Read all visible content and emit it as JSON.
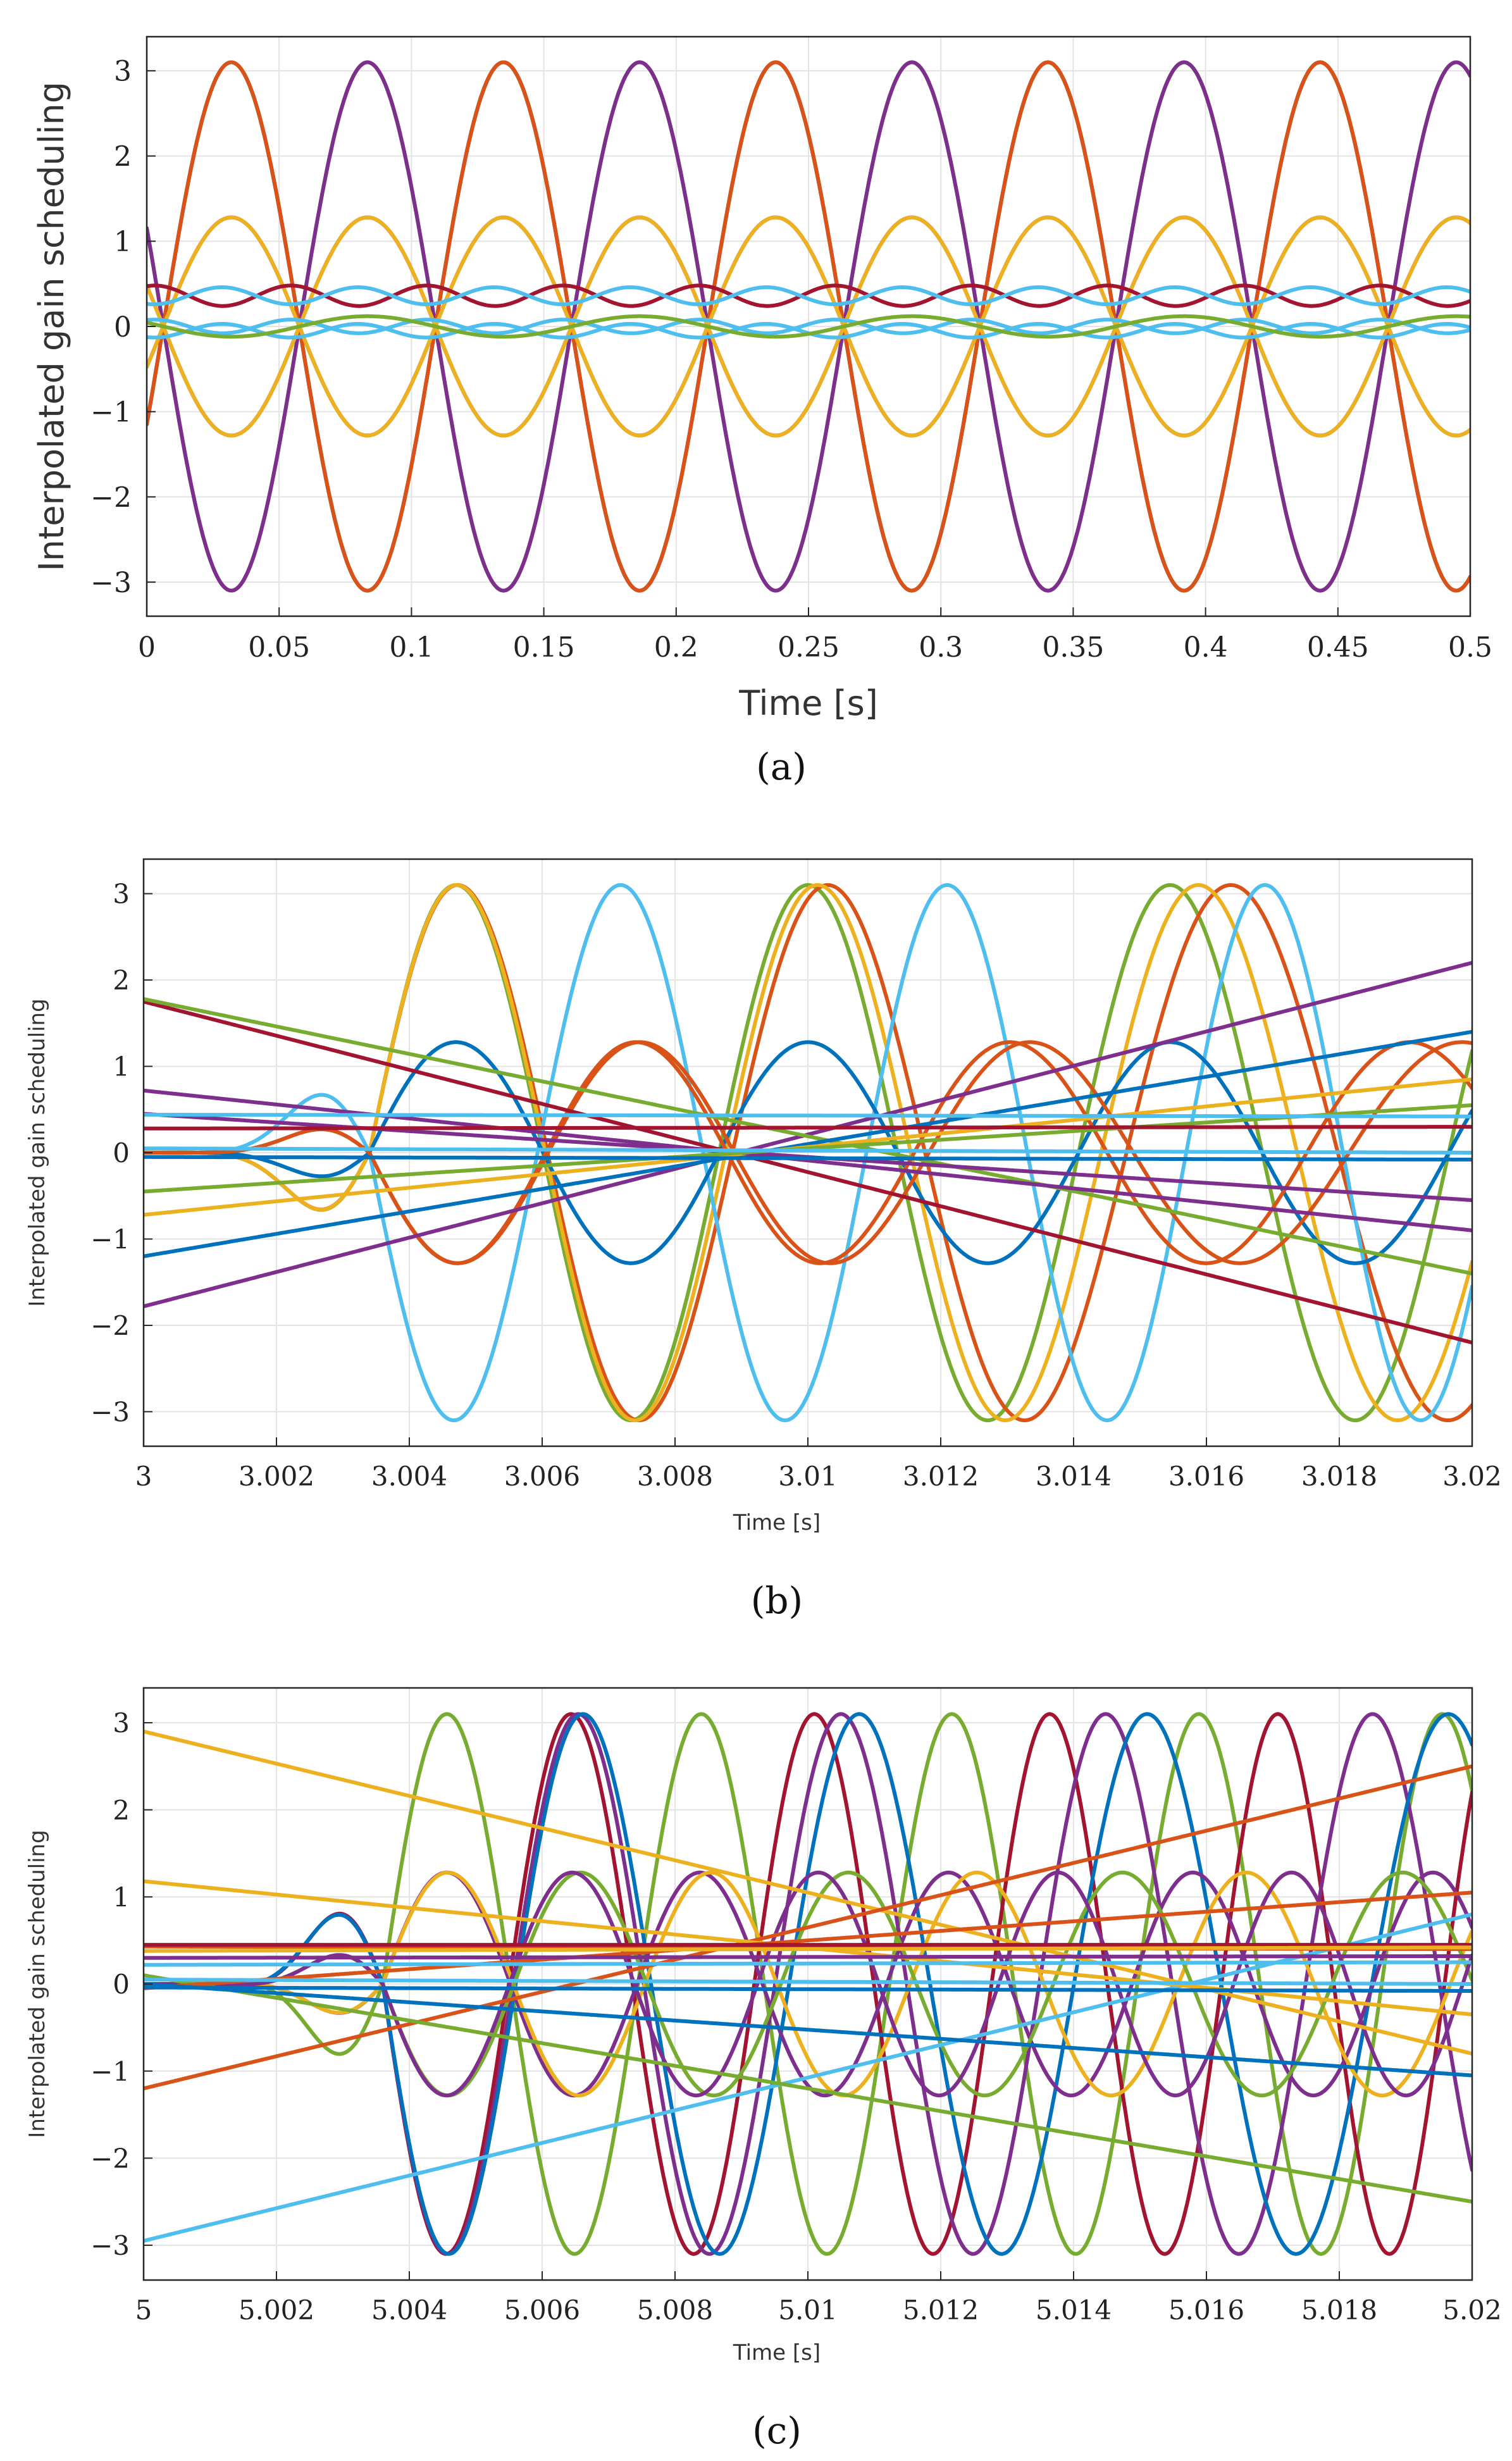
{
  "chart_data": [
    {
      "type": "line",
      "panel_caption": "(a)",
      "xlabel": "Time [s]",
      "ylabel": "Interpolated gain scheduling",
      "xlim": [
        0,
        0.5
      ],
      "ylim": [
        -3.4,
        3.4
      ],
      "xticks": [
        0,
        0.05,
        0.1,
        0.15,
        0.2,
        0.25,
        0.3,
        0.35,
        0.4,
        0.45,
        0.5
      ],
      "xtick_labels": [
        "0",
        "0.05",
        "0.1",
        "0.15",
        "0.2",
        "0.25",
        "0.3",
        "0.35",
        "0.4",
        "0.45",
        "0.5"
      ],
      "yticks": [
        -3,
        -2,
        -1,
        0,
        1,
        2,
        3
      ],
      "ytick_labels": [
        "−3",
        "−2",
        "−1",
        "0",
        "1",
        "2",
        "3"
      ],
      "grid": true,
      "series": [
        {
          "name": "green",
          "color": "#77AC30",
          "amp": 3.1,
          "omega": 61.1,
          "phase": -0.38,
          "offset": 0
        },
        {
          "name": "green-b",
          "color": "#77AC30",
          "amp": 3.1,
          "omega": 61.1,
          "phase": 2.76,
          "offset": 0
        },
        {
          "name": "purple",
          "color": "#7E2F8E",
          "amp": 3.1,
          "omega": 61.1,
          "phase": 2.76,
          "offset": 0
        },
        {
          "name": "purple-b",
          "color": "#7E2F8E",
          "amp": 3.1,
          "omega": 61.1,
          "phase": -0.38,
          "offset": 0
        },
        {
          "name": "orange-red",
          "color": "#D95319",
          "amp": 3.1,
          "omega": 61.1,
          "phase": -0.38,
          "offset": 0
        },
        {
          "name": "purple-mid",
          "color": "#7E2F8E",
          "amp": 1.28,
          "omega": 61.1,
          "phase": -0.38,
          "offset": 0
        },
        {
          "name": "purple-mid-b",
          "color": "#7E2F8E",
          "amp": 1.28,
          "omega": 61.1,
          "phase": 2.76,
          "offset": 0
        },
        {
          "name": "yellow",
          "color": "#EDB120",
          "amp": 1.28,
          "omega": 61.1,
          "phase": 2.76,
          "offset": 0
        },
        {
          "name": "yellow-b",
          "color": "#EDB120",
          "amp": 1.28,
          "omega": 61.1,
          "phase": -0.38,
          "offset": 0
        },
        {
          "name": "dark-red",
          "color": "#A2142F",
          "amp": 0.12,
          "omega": 122.2,
          "phase": 1.2,
          "offset": 0.36
        },
        {
          "name": "cyan",
          "color": "#4DBEEE",
          "amp": 0.1,
          "omega": 122.2,
          "phase": -1.9,
          "offset": 0.36
        },
        {
          "name": "cyan-b",
          "color": "#4DBEEE",
          "amp": 0.08,
          "omega": 122.2,
          "phase": 1.2,
          "offset": 0.0
        },
        {
          "name": "cyan-c",
          "color": "#4DBEEE",
          "amp": 0.08,
          "omega": 122.2,
          "phase": -1.9,
          "offset": -0.05
        },
        {
          "name": "green-small",
          "color": "#77AC30",
          "amp": 0.12,
          "omega": 61.1,
          "phase": 2.76,
          "offset": 0.0
        }
      ]
    },
    {
      "type": "line",
      "panel_caption": "(b)",
      "xlabel": "Time [s]",
      "ylabel": "Interpolated gain scheduling",
      "xlim": [
        3,
        3.02
      ],
      "ylim": [
        -3.4,
        3.4
      ],
      "xticks": [
        3,
        3.002,
        3.004,
        3.006,
        3.008,
        3.01,
        3.012,
        3.014,
        3.016,
        3.018,
        3.02
      ],
      "xtick_labels": [
        "3",
        "3.002",
        "3.004",
        "3.006",
        "3.008",
        "3.01",
        "3.012",
        "3.014",
        "3.016",
        "3.018",
        "3.02"
      ],
      "yticks": [
        -3,
        -2,
        -1,
        0,
        1,
        2,
        3
      ],
      "ytick_labels": [
        "−3",
        "−2",
        "−1",
        "0",
        "1",
        "2",
        "3"
      ],
      "grid": true,
      "series": [
        {
          "name": "green",
          "color": "#77AC30",
          "kind": "chirp",
          "amp": 3.1,
          "t0": 3.0034,
          "p0": 5.15,
          "p1": -0.05,
          "sign": 1
        },
        {
          "name": "orange-red",
          "color": "#D95319",
          "kind": "chirp",
          "amp": 3.1,
          "t0": 3.0034,
          "p0": 5.15,
          "p1": -0.13,
          "sign": 1
        },
        {
          "name": "yellow",
          "color": "#EDB120",
          "kind": "chirp",
          "amp": 3.1,
          "t0": 3.0034,
          "p0": 5.15,
          "p1": -0.09,
          "sign": 1
        },
        {
          "name": "cyan",
          "color": "#4DBEEE",
          "kind": "chirp",
          "amp": 3.1,
          "t0": 3.0034,
          "p0": 5.15,
          "p1": 0.06,
          "sign": -1
        },
        {
          "name": "blue",
          "color": "#0072BD",
          "kind": "chirp",
          "amp": 1.28,
          "t0": 3.0034,
          "p0": 5.15,
          "p1": -0.05,
          "sign": 1
        },
        {
          "name": "orange-red-mid",
          "color": "#D95319",
          "kind": "chirp",
          "amp": 1.28,
          "t0": 3.0034,
          "p0": 5.15,
          "p1": -0.1,
          "sign": -1
        },
        {
          "name": "orange-red-mid-b",
          "color": "#D95319",
          "kind": "chirp",
          "amp": 1.28,
          "t0": 3.0034,
          "p0": 5.15,
          "p1": -0.14,
          "sign": -1
        },
        {
          "name": "dark-red-line",
          "color": "#A2142F",
          "kind": "linear",
          "y0": 1.75,
          "y1": -2.2
        },
        {
          "name": "purple-line",
          "color": "#7E2F8E",
          "kind": "linear",
          "y0": -1.78,
          "y1": 2.2
        },
        {
          "name": "green-line",
          "color": "#77AC30",
          "kind": "linear",
          "y0": 1.78,
          "y1": -1.4
        },
        {
          "name": "blue-line",
          "color": "#0072BD",
          "kind": "linear",
          "y0": -1.2,
          "y1": 1.4
        },
        {
          "name": "purple-line-b",
          "color": "#7E2F8E",
          "kind": "linear",
          "y0": 0.72,
          "y1": -0.9
        },
        {
          "name": "yellow-line",
          "color": "#EDB120",
          "kind": "linear",
          "y0": -0.72,
          "y1": 0.85
        },
        {
          "name": "purple-line-c",
          "color": "#7E2F8E",
          "kind": "linear",
          "y0": 0.45,
          "y1": -0.55
        },
        {
          "name": "green-line-b",
          "color": "#77AC30",
          "kind": "linear",
          "y0": -0.45,
          "y1": 0.55
        },
        {
          "name": "dark-red-flat",
          "color": "#A2142F",
          "kind": "linear",
          "y0": 0.28,
          "y1": 0.3
        },
        {
          "name": "cyan-flat",
          "color": "#4DBEEE",
          "kind": "linear",
          "y0": 0.44,
          "y1": 0.42
        },
        {
          "name": "cyan-flat-b",
          "color": "#4DBEEE",
          "kind": "linear",
          "y0": 0.05,
          "y1": 0.0
        },
        {
          "name": "blue-flat",
          "color": "#0072BD",
          "kind": "linear",
          "y0": -0.05,
          "y1": -0.08
        }
      ]
    },
    {
      "type": "line",
      "panel_caption": "(c)",
      "xlabel": "Time [s]",
      "ylabel": "Interpolated gain scheduling",
      "xlim": [
        5,
        5.02
      ],
      "ylim": [
        -3.4,
        3.4
      ],
      "xticks": [
        5,
        5.002,
        5.004,
        5.006,
        5.008,
        5.01,
        5.012,
        5.014,
        5.016,
        5.018,
        5.02
      ],
      "xtick_labels": [
        "5",
        "5.002",
        "5.004",
        "5.006",
        "5.008",
        "5.01",
        "5.012",
        "5.014",
        "5.016",
        "5.018",
        "5.02"
      ],
      "yticks": [
        -3,
        -2,
        -1,
        0,
        1,
        2,
        3
      ],
      "ytick_labels": [
        "−3",
        "−2",
        "−1",
        "0",
        "1",
        "2",
        "3"
      ],
      "grid": true,
      "series": [
        {
          "name": "green",
          "color": "#77AC30",
          "kind": "chirp",
          "amp": 3.1,
          "t0": 5.0036,
          "p0": 3.9,
          "p1": 0.04,
          "sign": 1
        },
        {
          "name": "dark-red",
          "color": "#A2142F",
          "kind": "chirp",
          "amp": 3.1,
          "t0": 5.0036,
          "p0": 3.9,
          "p1": 0.1,
          "sign": -1
        },
        {
          "name": "purple",
          "color": "#7E2F8E",
          "kind": "chirp",
          "amp": 3.1,
          "t0": 5.0036,
          "p0": 3.9,
          "p1": -0.02,
          "sign": -1
        },
        {
          "name": "blue",
          "color": "#0072BD",
          "kind": "chirp",
          "amp": 3.1,
          "t0": 5.0036,
          "p0": 3.9,
          "p1": -0.09,
          "sign": -1
        },
        {
          "name": "purple-mid",
          "color": "#7E2F8E",
          "kind": "chirp",
          "amp": 1.28,
          "t0": 5.0036,
          "p0": 3.9,
          "p1": 0.05,
          "sign": 1
        },
        {
          "name": "yellow-mid",
          "color": "#EDB120",
          "kind": "chirp",
          "amp": 1.28,
          "t0": 5.0036,
          "p0": 3.9,
          "p1": -0.03,
          "sign": 1
        },
        {
          "name": "green-mid",
          "color": "#77AC30",
          "kind": "chirp",
          "amp": 1.28,
          "t0": 5.0036,
          "p0": 3.9,
          "p1": -0.05,
          "sign": -1
        },
        {
          "name": "purple-mid-b",
          "color": "#7E2F8E",
          "kind": "chirp",
          "amp": 1.28,
          "t0": 5.0036,
          "p0": 3.9,
          "p1": 0.08,
          "sign": -1
        },
        {
          "name": "yellow-line",
          "color": "#EDB120",
          "kind": "linear",
          "y0": 2.9,
          "y1": -0.8
        },
        {
          "name": "cyan-line",
          "color": "#4DBEEE",
          "kind": "linear",
          "y0": -2.95,
          "y1": 0.8
        },
        {
          "name": "orange-line",
          "color": "#D95319",
          "kind": "linear",
          "y0": -1.2,
          "y1": 2.5
        },
        {
          "name": "green-line",
          "color": "#77AC30",
          "kind": "linear",
          "y0": 0.1,
          "y1": -2.5
        },
        {
          "name": "yellow-line-b",
          "color": "#EDB120",
          "kind": "linear",
          "y0": 1.18,
          "y1": -0.35
        },
        {
          "name": "orange-line-b",
          "color": "#D95319",
          "kind": "linear",
          "y0": -0.05,
          "y1": 1.05
        },
        {
          "name": "blue-line",
          "color": "#0072BD",
          "kind": "linear",
          "y0": 0.0,
          "y1": -1.05
        },
        {
          "name": "orange-flat",
          "color": "#D95319",
          "kind": "linear",
          "y0": 0.43,
          "y1": 0.4
        },
        {
          "name": "dark-red-flat",
          "color": "#A2142F",
          "kind": "linear",
          "y0": 0.45,
          "y1": 0.45
        },
        {
          "name": "purple-flat",
          "color": "#7E2F8E",
          "kind": "linear",
          "y0": 0.3,
          "y1": 0.32
        },
        {
          "name": "cyan-flat",
          "color": "#4DBEEE",
          "kind": "linear",
          "y0": 0.22,
          "y1": 0.25
        },
        {
          "name": "cyan-flat-b",
          "color": "#4DBEEE",
          "kind": "linear",
          "y0": 0.05,
          "y1": 0.0
        },
        {
          "name": "blue-flat",
          "color": "#0072BD",
          "kind": "linear",
          "y0": -0.04,
          "y1": -0.08
        },
        {
          "name": "yellow-flat",
          "color": "#EDB120",
          "kind": "linear",
          "y0": 0.38,
          "y1": 0.42
        }
      ]
    }
  ]
}
